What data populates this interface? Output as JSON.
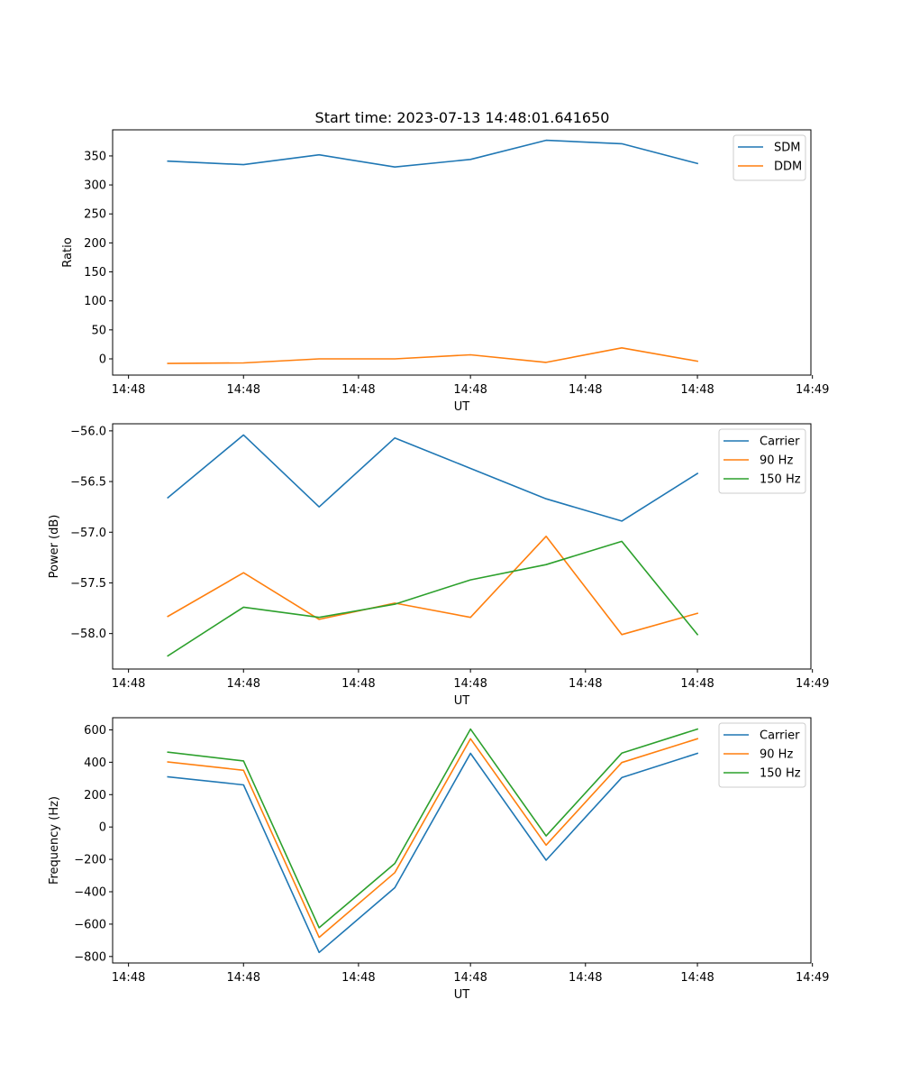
{
  "figure": {
    "title": "Start time: 2023-07-13 14:48:01.641650"
  },
  "chart_data": [
    {
      "type": "line",
      "title": "Start time: 2023-07-13 14:48:01.641650",
      "xlabel": "UT",
      "ylabel": "Ratio",
      "x": [
        0,
        1,
        2,
        3,
        4,
        5,
        6,
        7
      ],
      "xlim": [
        -0.73,
        8.5
      ],
      "x_ticks": [
        -0.52,
        1,
        2.52,
        4,
        5.52,
        7,
        8.52
      ],
      "x_tick_labels": [
        "14:48",
        "14:48",
        "14:48",
        "14:48",
        "14:48",
        "14:48",
        "14:49"
      ],
      "ylim": [
        -28,
        395
      ],
      "y_ticks": [
        0,
        50,
        100,
        150,
        200,
        250,
        300,
        350
      ],
      "y_tick_labels": [
        "0",
        "50",
        "100",
        "150",
        "200",
        "250",
        "300",
        "350"
      ],
      "legend_position": "top-right",
      "series": [
        {
          "name": "SDM",
          "color": "#1f77b4",
          "values": [
            341,
            335,
            352,
            331,
            344,
            377,
            371,
            337
          ]
        },
        {
          "name": "DDM",
          "color": "#ff7f0e",
          "values": [
            -8,
            -7,
            0,
            0,
            7,
            -6,
            19,
            -4
          ]
        }
      ]
    },
    {
      "type": "line",
      "title": "",
      "xlabel": "UT",
      "ylabel": "Power (dB)",
      "x": [
        0,
        1,
        2,
        3,
        4,
        5,
        6,
        7
      ],
      "xlim": [
        -0.73,
        8.5
      ],
      "x_ticks": [
        -0.52,
        1,
        2.52,
        4,
        5.52,
        7,
        8.52
      ],
      "x_tick_labels": [
        "14:48",
        "14:48",
        "14:48",
        "14:48",
        "14:48",
        "14:48",
        "14:49"
      ],
      "ylim": [
        -58.35,
        -55.93
      ],
      "y_ticks": [
        -58.0,
        -57.5,
        -57.0,
        -56.5,
        -56.0
      ],
      "y_tick_labels": [
        "−58.0",
        "−57.5",
        "−57.0",
        "−56.5",
        "−56.0"
      ],
      "legend_position": "top-right",
      "series": [
        {
          "name": "Carrier",
          "color": "#1f77b4",
          "values": [
            -56.66,
            -56.04,
            -56.75,
            -56.07,
            -56.37,
            -56.67,
            -56.89,
            -56.42
          ]
        },
        {
          "name": "90 Hz",
          "color": "#ff7f0e",
          "values": [
            -57.83,
            -57.4,
            -57.86,
            -57.7,
            -57.84,
            -57.04,
            -58.01,
            -57.8
          ]
        },
        {
          "name": "150 Hz",
          "color": "#2ca02c",
          "values": [
            -58.22,
            -57.74,
            -57.84,
            -57.71,
            -57.47,
            -57.32,
            -57.09,
            -58.01
          ]
        }
      ]
    },
    {
      "type": "line",
      "title": "",
      "xlabel": "UT",
      "ylabel": "Frequency (Hz)",
      "x": [
        0,
        1,
        2,
        3,
        4,
        5,
        6,
        7
      ],
      "xlim": [
        -0.73,
        8.5
      ],
      "x_ticks": [
        -0.52,
        1,
        2.52,
        4,
        5.52,
        7,
        8.52
      ],
      "x_tick_labels": [
        "14:48",
        "14:48",
        "14:48",
        "14:48",
        "14:48",
        "14:48",
        "14:49"
      ],
      "ylim": [
        -840,
        675
      ],
      "y_ticks": [
        -800,
        -600,
        -400,
        -200,
        0,
        200,
        400,
        600
      ],
      "y_tick_labels": [
        "−800",
        "−600",
        "−400",
        "−200",
        "0",
        "200",
        "400",
        "600"
      ],
      "legend_position": "top-right",
      "series": [
        {
          "name": "Carrier",
          "color": "#1f77b4",
          "values": [
            310,
            260,
            -775,
            -375,
            455,
            -205,
            305,
            455
          ]
        },
        {
          "name": "90 Hz",
          "color": "#ff7f0e",
          "values": [
            402,
            350,
            -682,
            -282,
            545,
            -112,
            398,
            545
          ]
        },
        {
          "name": "150 Hz",
          "color": "#2ca02c",
          "values": [
            462,
            408,
            -622,
            -225,
            605,
            -55,
            456,
            605
          ]
        }
      ]
    }
  ]
}
